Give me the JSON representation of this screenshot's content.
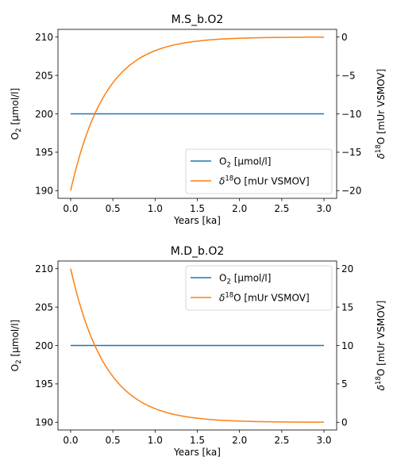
{
  "chart_data": [
    {
      "type": "line",
      "title": "M.S_b.O2",
      "xlabel": "Years [ka]",
      "ylabel_left": "O",
      "ylabel_left_sub": "2",
      "ylabel_left_unit": " [µmol/l]",
      "ylabel_right_delta": "δ",
      "ylabel_right_sup": "18",
      "ylabel_right_rest": "O [mUr VSMOV]",
      "xlim": [
        -0.15,
        3.15
      ],
      "ylim_left": [
        189.0,
        211.0
      ],
      "ylim_right": [
        -21.0,
        1.0
      ],
      "xticks": [
        0.0,
        0.5,
        1.0,
        1.5,
        2.0,
        2.5,
        3.0
      ],
      "xtick_labels": [
        "0.0",
        "0.5",
        "1.0",
        "1.5",
        "2.0",
        "2.5",
        "3.0"
      ],
      "yticks_left": [
        190,
        195,
        200,
        205,
        210
      ],
      "ytick_labels_left": [
        "190",
        "195",
        "200",
        "205",
        "210"
      ],
      "yticks_right": [
        -20,
        -15,
        -10,
        -5,
        0
      ],
      "ytick_labels_right": [
        "−20",
        "−15",
        "−10",
        "−5",
        "0"
      ],
      "legend_position": "lower-right",
      "series": [
        {
          "name": "O",
          "name_sub": "2",
          "name_rest": " [µmol/l]",
          "axis": "left",
          "color": "#1f77b4",
          "x": [
            0.0,
            0.25,
            0.5,
            0.75,
            1.0,
            1.25,
            1.5,
            1.75,
            2.0,
            2.25,
            2.5,
            2.75,
            3.0
          ],
          "y": [
            200,
            200,
            200,
            200,
            200,
            200,
            200,
            200,
            200,
            200,
            200,
            200,
            200
          ]
        },
        {
          "name": "δ",
          "name_sup": "18",
          "name_rest": "O [mUr VSMOV]",
          "axis": "right",
          "color": "#ff7f0e",
          "x": [
            0.0,
            0.1,
            0.2,
            0.3,
            0.4,
            0.5,
            0.6,
            0.7,
            0.8,
            0.9,
            1.0,
            1.2,
            1.4,
            1.6,
            1.8,
            2.0,
            2.25,
            2.5,
            2.75,
            3.0
          ],
          "y": [
            -20.0,
            -15.9,
            -12.6,
            -9.9,
            -7.8,
            -6.1,
            -4.8,
            -3.7,
            -2.9,
            -2.3,
            -1.8,
            -1.1,
            -0.7,
            -0.4,
            -0.25,
            -0.15,
            -0.08,
            -0.04,
            -0.02,
            0.0
          ]
        }
      ]
    },
    {
      "type": "line",
      "title": "M.D_b.O2",
      "xlabel": "Years [ka]",
      "ylabel_left": "O",
      "ylabel_left_sub": "2",
      "ylabel_left_unit": " [µmol/l]",
      "ylabel_right_delta": "δ",
      "ylabel_right_sup": "18",
      "ylabel_right_rest": "O [mUr VSMOV]",
      "xlim": [
        -0.15,
        3.15
      ],
      "ylim_left": [
        189.0,
        211.0
      ],
      "ylim_right": [
        -1.0,
        21.0
      ],
      "xticks": [
        0.0,
        0.5,
        1.0,
        1.5,
        2.0,
        2.5,
        3.0
      ],
      "xtick_labels": [
        "0.0",
        "0.5",
        "1.0",
        "1.5",
        "2.0",
        "2.5",
        "3.0"
      ],
      "yticks_left": [
        190,
        195,
        200,
        205,
        210
      ],
      "ytick_labels_left": [
        "190",
        "195",
        "200",
        "205",
        "210"
      ],
      "yticks_right": [
        0,
        5,
        10,
        15,
        20
      ],
      "ytick_labels_right": [
        "0",
        "5",
        "10",
        "15",
        "20"
      ],
      "legend_position": "upper-right",
      "series": [
        {
          "name": "O",
          "name_sub": "2",
          "name_rest": " [µmol/l]",
          "axis": "left",
          "color": "#1f77b4",
          "x": [
            0.0,
            0.25,
            0.5,
            0.75,
            1.0,
            1.25,
            1.5,
            1.75,
            2.0,
            2.25,
            2.5,
            2.75,
            3.0
          ],
          "y": [
            200,
            200,
            200,
            200,
            200,
            200,
            200,
            200,
            200,
            200,
            200,
            200,
            200
          ]
        },
        {
          "name": "δ",
          "name_sup": "18",
          "name_rest": "O [mUr VSMOV]",
          "axis": "right",
          "color": "#ff7f0e",
          "x": [
            0.0,
            0.1,
            0.2,
            0.3,
            0.4,
            0.5,
            0.6,
            0.7,
            0.8,
            0.9,
            1.0,
            1.2,
            1.4,
            1.6,
            1.8,
            2.0,
            2.25,
            2.5,
            2.75,
            3.0
          ],
          "y": [
            20.0,
            15.9,
            12.6,
            9.9,
            7.8,
            6.1,
            4.8,
            3.7,
            2.9,
            2.3,
            1.8,
            1.1,
            0.7,
            0.4,
            0.25,
            0.15,
            0.08,
            0.04,
            0.02,
            0.0
          ]
        }
      ]
    }
  ]
}
